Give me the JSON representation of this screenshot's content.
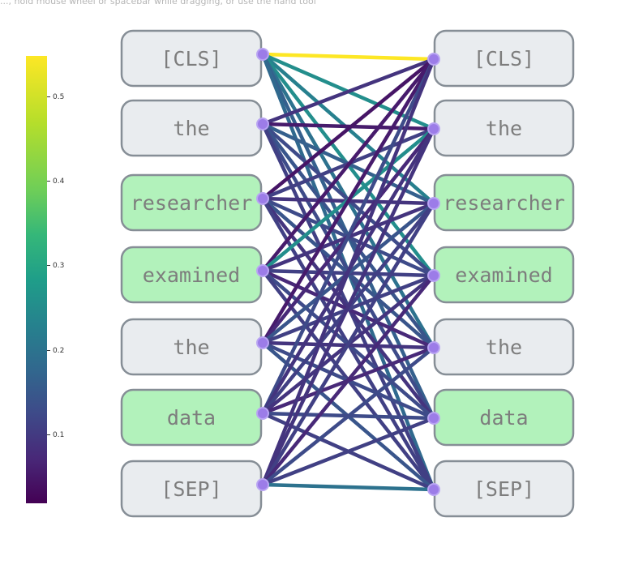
{
  "hint_text": "..., hold mouse wheel or spacebar while dragging, or use the hand tool",
  "colorbar": {
    "ticks": [
      "0.5",
      "0.4",
      "0.3",
      "0.2",
      "0.1"
    ],
    "tick_values": [
      0.5,
      0.4,
      0.3,
      0.2,
      0.1
    ],
    "range": [
      0.02,
      0.55
    ]
  },
  "colors": {
    "box_gray": "#e9ecef",
    "box_green": "#b2f2bb",
    "box_stroke": "#868e96",
    "node": "#9c7ce8",
    "text": "#7d7d7d"
  },
  "left_tokens": [
    {
      "label": "[CLS]",
      "highlight": false
    },
    {
      "label": "the",
      "highlight": false
    },
    {
      "label": "researcher",
      "highlight": true
    },
    {
      "label": "examined",
      "highlight": true
    },
    {
      "label": "the",
      "highlight": false
    },
    {
      "label": "data",
      "highlight": true
    },
    {
      "label": "[SEP]",
      "highlight": false
    }
  ],
  "right_tokens": [
    {
      "label": "[CLS]",
      "highlight": false
    },
    {
      "label": "the",
      "highlight": false
    },
    {
      "label": "researcher",
      "highlight": true
    },
    {
      "label": "examined",
      "highlight": true
    },
    {
      "label": "the",
      "highlight": false
    },
    {
      "label": "data",
      "highlight": true
    },
    {
      "label": "[SEP]",
      "highlight": false
    }
  ],
  "attention": [
    [
      0.55,
      0.28,
      0.25,
      0.28,
      0.22,
      0.18,
      0.2
    ],
    [
      0.1,
      0.06,
      0.18,
      0.14,
      0.16,
      0.14,
      0.12
    ],
    [
      0.05,
      0.12,
      0.1,
      0.14,
      0.16,
      0.1,
      0.12
    ],
    [
      0.06,
      0.28,
      0.1,
      0.12,
      0.08,
      0.14,
      0.12
    ],
    [
      0.06,
      0.08,
      0.16,
      0.12,
      0.1,
      0.14,
      0.16
    ],
    [
      0.14,
      0.1,
      0.12,
      0.1,
      0.08,
      0.14,
      0.12
    ],
    [
      0.1,
      0.1,
      0.12,
      0.08,
      0.14,
      0.12,
      0.22
    ]
  ]
}
